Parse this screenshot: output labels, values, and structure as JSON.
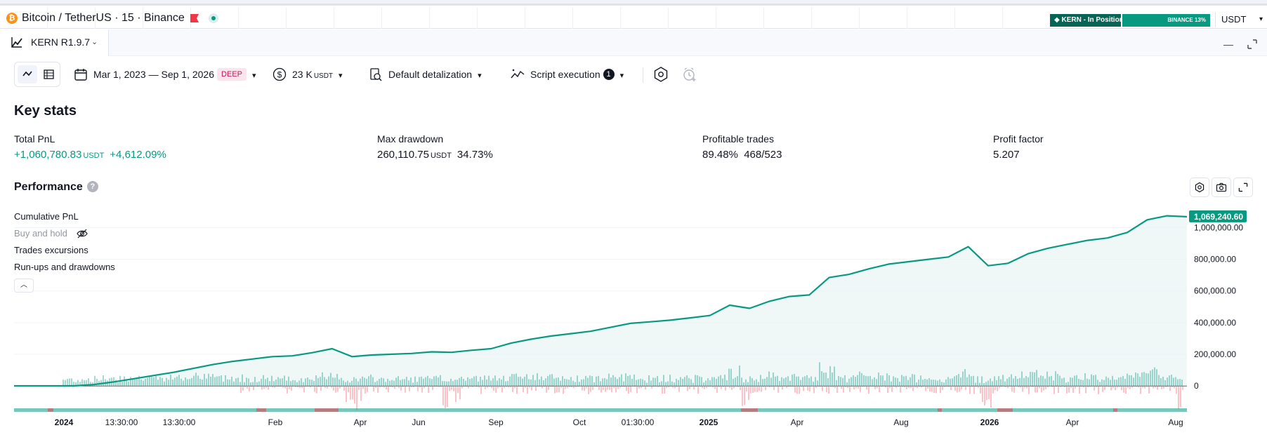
{
  "symbol_bar": {
    "btc_glyph": "₿",
    "title": "Bitcoin / TetherUS · 15 · Binance",
    "position_badge": "◆ KERN - In Position",
    "position_bar": "BINANCE 13%",
    "currency": "USDT"
  },
  "tab": {
    "label": "KERN R1.9.7"
  },
  "toolbar": {
    "date_range": "Mar 1, 2023 — Sep 1, 2026",
    "date_badge": "DEEP",
    "capital": "23 K",
    "capital_unit": "USDT",
    "detalization": "Default detalization",
    "script_execution": "Script execution",
    "script_count": "1"
  },
  "key_stats": {
    "title": "Key stats",
    "total_pnl": {
      "label": "Total PnL",
      "value": "+1,060,780.83",
      "unit": "USDT",
      "percent": "+4,612.09%"
    },
    "max_drawdown": {
      "label": "Max drawdown",
      "value": "260,110.75",
      "unit": "USDT",
      "percent": "34.73%"
    },
    "profitable_trades": {
      "label": "Profitable trades",
      "percent": "89.48%",
      "ratio": "468/523"
    },
    "profit_factor": {
      "label": "Profit factor",
      "value": "5.207"
    }
  },
  "performance": {
    "title": "Performance",
    "help_glyph": "?",
    "legend": {
      "cumulative": "Cumulative PnL",
      "buy_hold": "Buy and hold",
      "excursions": "Trades excursions",
      "runups": "Run-ups and drawdowns"
    }
  },
  "chart_data": {
    "type": "line",
    "title": "",
    "series": [
      {
        "name": "Cumulative PnL",
        "color": "#089981",
        "values": [
          0,
          0,
          0,
          0,
          8000,
          25000,
          45000,
          65000,
          85000,
          110000,
          135000,
          155000,
          170000,
          185000,
          190000,
          210000,
          235000,
          185000,
          195000,
          200000,
          205000,
          215000,
          212000,
          225000,
          235000,
          270000,
          295000,
          315000,
          330000,
          345000,
          370000,
          395000,
          405000,
          415000,
          430000,
          445000,
          510000,
          490000,
          535000,
          565000,
          575000,
          685000,
          705000,
          740000,
          770000,
          785000,
          800000,
          815000,
          880000,
          760000,
          775000,
          835000,
          870000,
          895000,
          920000,
          935000,
          970000,
          1050000,
          1075000,
          1069240.6
        ]
      }
    ],
    "y_ticks": [
      "0",
      "200,000.00",
      "400,000.00",
      "600,000.00",
      "800,000.00",
      "1,000,000.00"
    ],
    "ylim": [
      0,
      1100000
    ],
    "last_value_label": "1,069,240.60",
    "x_labels": [
      {
        "text": "2024",
        "bold": true
      },
      {
        "text": "13:30:00",
        "bold": false
      },
      {
        "text": "13:30:00",
        "bold": false
      },
      {
        "text": "Feb",
        "bold": false
      },
      {
        "text": "Apr",
        "bold": false
      },
      {
        "text": "Jun",
        "bold": false
      },
      {
        "text": "Sep",
        "bold": false
      },
      {
        "text": "Oct",
        "bold": false
      },
      {
        "text": "01:30:00",
        "bold": false
      },
      {
        "text": "2025",
        "bold": true
      },
      {
        "text": "Apr",
        "bold": false
      },
      {
        "text": "Aug",
        "bold": false
      },
      {
        "text": "2026",
        "bold": true
      },
      {
        "text": "Apr",
        "bold": false
      },
      {
        "text": "Aug",
        "bold": false
      }
    ],
    "colors": {
      "up": "#089981",
      "down": "#f23645",
      "area": "#e8f5f3"
    }
  }
}
